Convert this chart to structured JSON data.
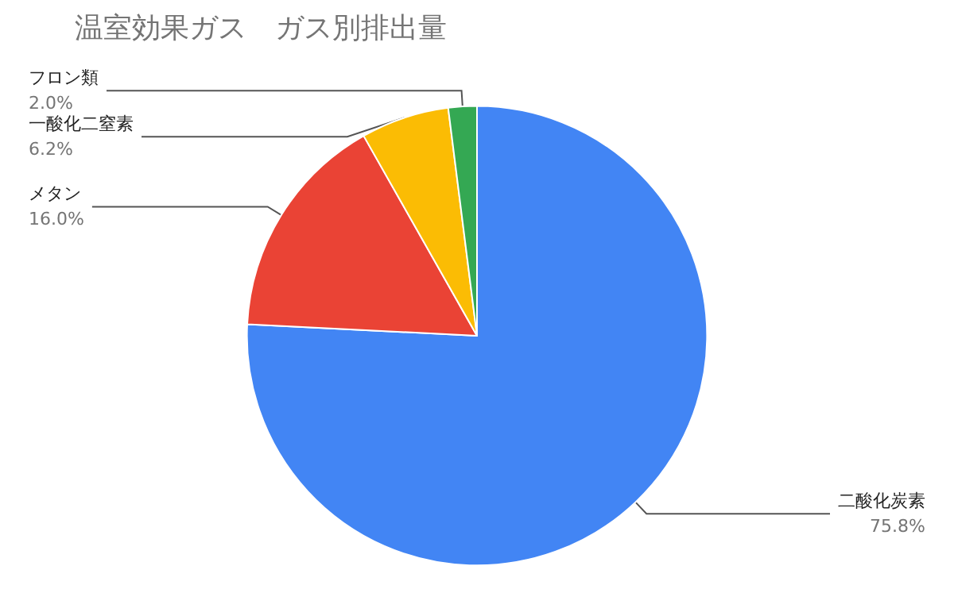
{
  "chart_data": {
    "type": "pie",
    "title": "温室効果ガス　ガス別排出量",
    "categories": [
      "二酸化炭素",
      "メタン",
      "一酸化二窒素",
      "フロン類"
    ],
    "values": [
      75.8,
      16.0,
      6.2,
      2.0
    ],
    "colors": [
      "#4285f4",
      "#ea4335",
      "#fbbc04",
      "#34a853"
    ],
    "value_labels": [
      "75.8%",
      "16.0%",
      "6.2%",
      "2.0%"
    ],
    "legend": false
  }
}
